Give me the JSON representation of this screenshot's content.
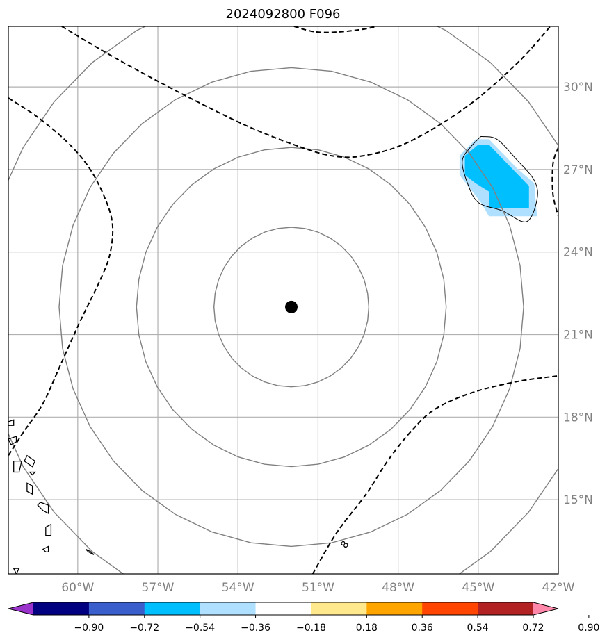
{
  "chart_data": {
    "type": "map",
    "title": "2024092800 F096",
    "projection": "lat-lon",
    "lon_range": [
      -62.6,
      -42.0
    ],
    "lat_range": [
      12.3,
      32.2
    ],
    "grid": true,
    "lon_ticks": [
      {
        "value": -60,
        "label": "60°W"
      },
      {
        "value": -57,
        "label": "57°W"
      },
      {
        "value": -54,
        "label": "54°W"
      },
      {
        "value": -51,
        "label": "51°W"
      },
      {
        "value": -48,
        "label": "48°W"
      },
      {
        "value": -45,
        "label": "45°W"
      },
      {
        "value": -42,
        "label": "42°W"
      }
    ],
    "lat_ticks": [
      {
        "value": 30,
        "label": "30°N"
      },
      {
        "value": 27,
        "label": "27°N"
      },
      {
        "value": 24,
        "label": "24°N"
      },
      {
        "value": 21,
        "label": "21°N"
      },
      {
        "value": 18,
        "label": "18°N"
      },
      {
        "value": 15,
        "label": "15°N"
      }
    ],
    "center": {
      "lon": -52.0,
      "lat": 22.0
    },
    "range_rings_deg": [
      2.9,
      5.8,
      8.7,
      11.6
    ],
    "dashed_contours": [
      {
        "name": "c1",
        "points": [
          [
            -60.6,
            32.2
          ],
          [
            -58.5,
            31.0
          ],
          [
            -56.0,
            29.7
          ],
          [
            -53.7,
            28.6
          ],
          [
            -51.9,
            27.9
          ],
          [
            -50.5,
            27.5
          ],
          [
            -49.3,
            27.5
          ],
          [
            -47.6,
            28.0
          ],
          [
            -45.4,
            29.3
          ],
          [
            -43.5,
            30.9
          ],
          [
            -42.3,
            32.2
          ]
        ]
      },
      {
        "name": "c2",
        "points": [
          [
            -62.6,
            29.6
          ],
          [
            -61.5,
            28.9
          ],
          [
            -60.4,
            28.0
          ],
          [
            -59.6,
            27.1
          ],
          [
            -59.0,
            26.0
          ],
          [
            -58.7,
            25.0
          ],
          [
            -58.8,
            23.9
          ],
          [
            -59.2,
            22.9
          ],
          [
            -59.9,
            21.5
          ],
          [
            -60.6,
            20.0
          ],
          [
            -61.3,
            18.5
          ],
          [
            -62.0,
            17.5
          ],
          [
            -62.6,
            16.6
          ]
        ]
      },
      {
        "name": "c3",
        "points": [
          [
            -51.2,
            12.3
          ],
          [
            -50.3,
            13.8
          ],
          [
            -49.2,
            15.2
          ],
          [
            -48.4,
            16.4
          ],
          [
            -47.5,
            17.5
          ],
          [
            -46.6,
            18.3
          ],
          [
            -45.2,
            18.9
          ],
          [
            -43.5,
            19.3
          ],
          [
            -42.0,
            19.5
          ]
        ]
      },
      {
        "name": "c4",
        "points": [
          [
            -51.9,
            32.2
          ],
          [
            -51.1,
            32.0
          ],
          [
            -50.2,
            32.0
          ],
          [
            -49.3,
            32.1
          ],
          [
            -48.8,
            32.2
          ]
        ]
      },
      {
        "name": "c5",
        "points": [
          [
            -42.0,
            27.8
          ],
          [
            -42.2,
            27.2
          ],
          [
            -42.2,
            26.1
          ],
          [
            -42.0,
            25.3
          ]
        ]
      }
    ],
    "contour_labels": [
      {
        "text": "8",
        "lon": -49.9,
        "lat": 13.3
      }
    ],
    "shaded_region": {
      "outer": {
        "color": "#afe0ff",
        "points": [
          [
            -45.1,
            28.1
          ],
          [
            -44.6,
            28.1
          ],
          [
            -43.5,
            27.0
          ],
          [
            -42.9,
            26.5
          ],
          [
            -42.8,
            25.3
          ],
          [
            -44.6,
            25.3
          ],
          [
            -44.9,
            25.8
          ],
          [
            -45.3,
            26.3
          ],
          [
            -45.7,
            26.8
          ],
          [
            -45.7,
            27.5
          ]
        ]
      },
      "inner": {
        "color": "#00bfff",
        "points": [
          [
            -45.0,
            27.9
          ],
          [
            -44.6,
            27.9
          ],
          [
            -43.8,
            27.1
          ],
          [
            -43.1,
            26.4
          ],
          [
            -43.1,
            25.6
          ],
          [
            -44.6,
            25.6
          ],
          [
            -44.6,
            26.2
          ],
          [
            -45.1,
            26.5
          ],
          [
            -45.5,
            26.8
          ],
          [
            -45.5,
            27.5
          ]
        ]
      },
      "outline": [
        [
          -44.9,
          28.2
        ],
        [
          -44.3,
          28.1
        ],
        [
          -43.6,
          27.4
        ],
        [
          -42.9,
          26.6
        ],
        [
          -42.8,
          25.9
        ],
        [
          -43.2,
          25.1
        ],
        [
          -44.1,
          25.5
        ],
        [
          -45.0,
          25.8
        ],
        [
          -45.4,
          26.5
        ],
        [
          -45.6,
          27.3
        ],
        [
          -45.3,
          27.8
        ]
      ]
    },
    "islands": [
      [
        [
          -62.7,
          17.8
        ],
        [
          -62.4,
          17.9
        ],
        [
          -62.4,
          17.7
        ],
        [
          -62.6,
          17.7
        ]
      ],
      [
        [
          -62.6,
          17.2
        ],
        [
          -62.3,
          17.3
        ],
        [
          -62.3,
          17.1
        ],
        [
          -62.5,
          17.0
        ]
      ],
      [
        [
          -62.4,
          16.4
        ],
        [
          -62.1,
          16.4
        ],
        [
          -62.2,
          16.0
        ],
        [
          -62.4,
          16.0
        ]
      ],
      [
        [
          -61.9,
          16.6
        ],
        [
          -61.6,
          16.4
        ],
        [
          -61.7,
          16.2
        ],
        [
          -62.0,
          16.4
        ]
      ],
      [
        [
          -61.8,
          16.0
        ],
        [
          -61.6,
          16.0
        ],
        [
          -61.7,
          15.9
        ]
      ],
      [
        [
          -61.9,
          15.6
        ],
        [
          -61.7,
          15.5
        ],
        [
          -61.7,
          15.2
        ],
        [
          -61.9,
          15.3
        ]
      ],
      [
        [
          -61.4,
          14.9
        ],
        [
          -61.1,
          14.8
        ],
        [
          -61.1,
          14.5
        ],
        [
          -61.3,
          14.6
        ],
        [
          -61.5,
          14.8
        ]
      ],
      [
        [
          -61.2,
          14.0
        ],
        [
          -61.0,
          14.1
        ],
        [
          -61.0,
          13.7
        ],
        [
          -61.2,
          13.7
        ]
      ],
      [
        [
          -61.3,
          13.2
        ],
        [
          -61.1,
          13.3
        ],
        [
          -61.1,
          13.1
        ],
        [
          -61.2,
          13.1
        ]
      ],
      [
        [
          -59.7,
          13.2
        ],
        [
          -59.5,
          13.1
        ],
        [
          -59.4,
          13.0
        ],
        [
          -59.6,
          13.1
        ]
      ],
      [
        [
          -62.4,
          12.5
        ],
        [
          -62.2,
          12.5
        ],
        [
          -62.3,
          12.3
        ]
      ]
    ],
    "colorbar": {
      "tick_labels": [
        "−0.90",
        "−0.72",
        "−0.54",
        "−0.36",
        "−0.18",
        "0.18",
        "0.36",
        "0.54",
        "0.72",
        "0.90"
      ],
      "colors": [
        "#9933cc",
        "#000080",
        "#3a5fcd",
        "#00bfff",
        "#afe0ff",
        "#ffffff",
        "#ffe98c",
        "#ffa500",
        "#ff4500",
        "#b22222",
        "#ff88aa"
      ],
      "extend": "both"
    }
  }
}
